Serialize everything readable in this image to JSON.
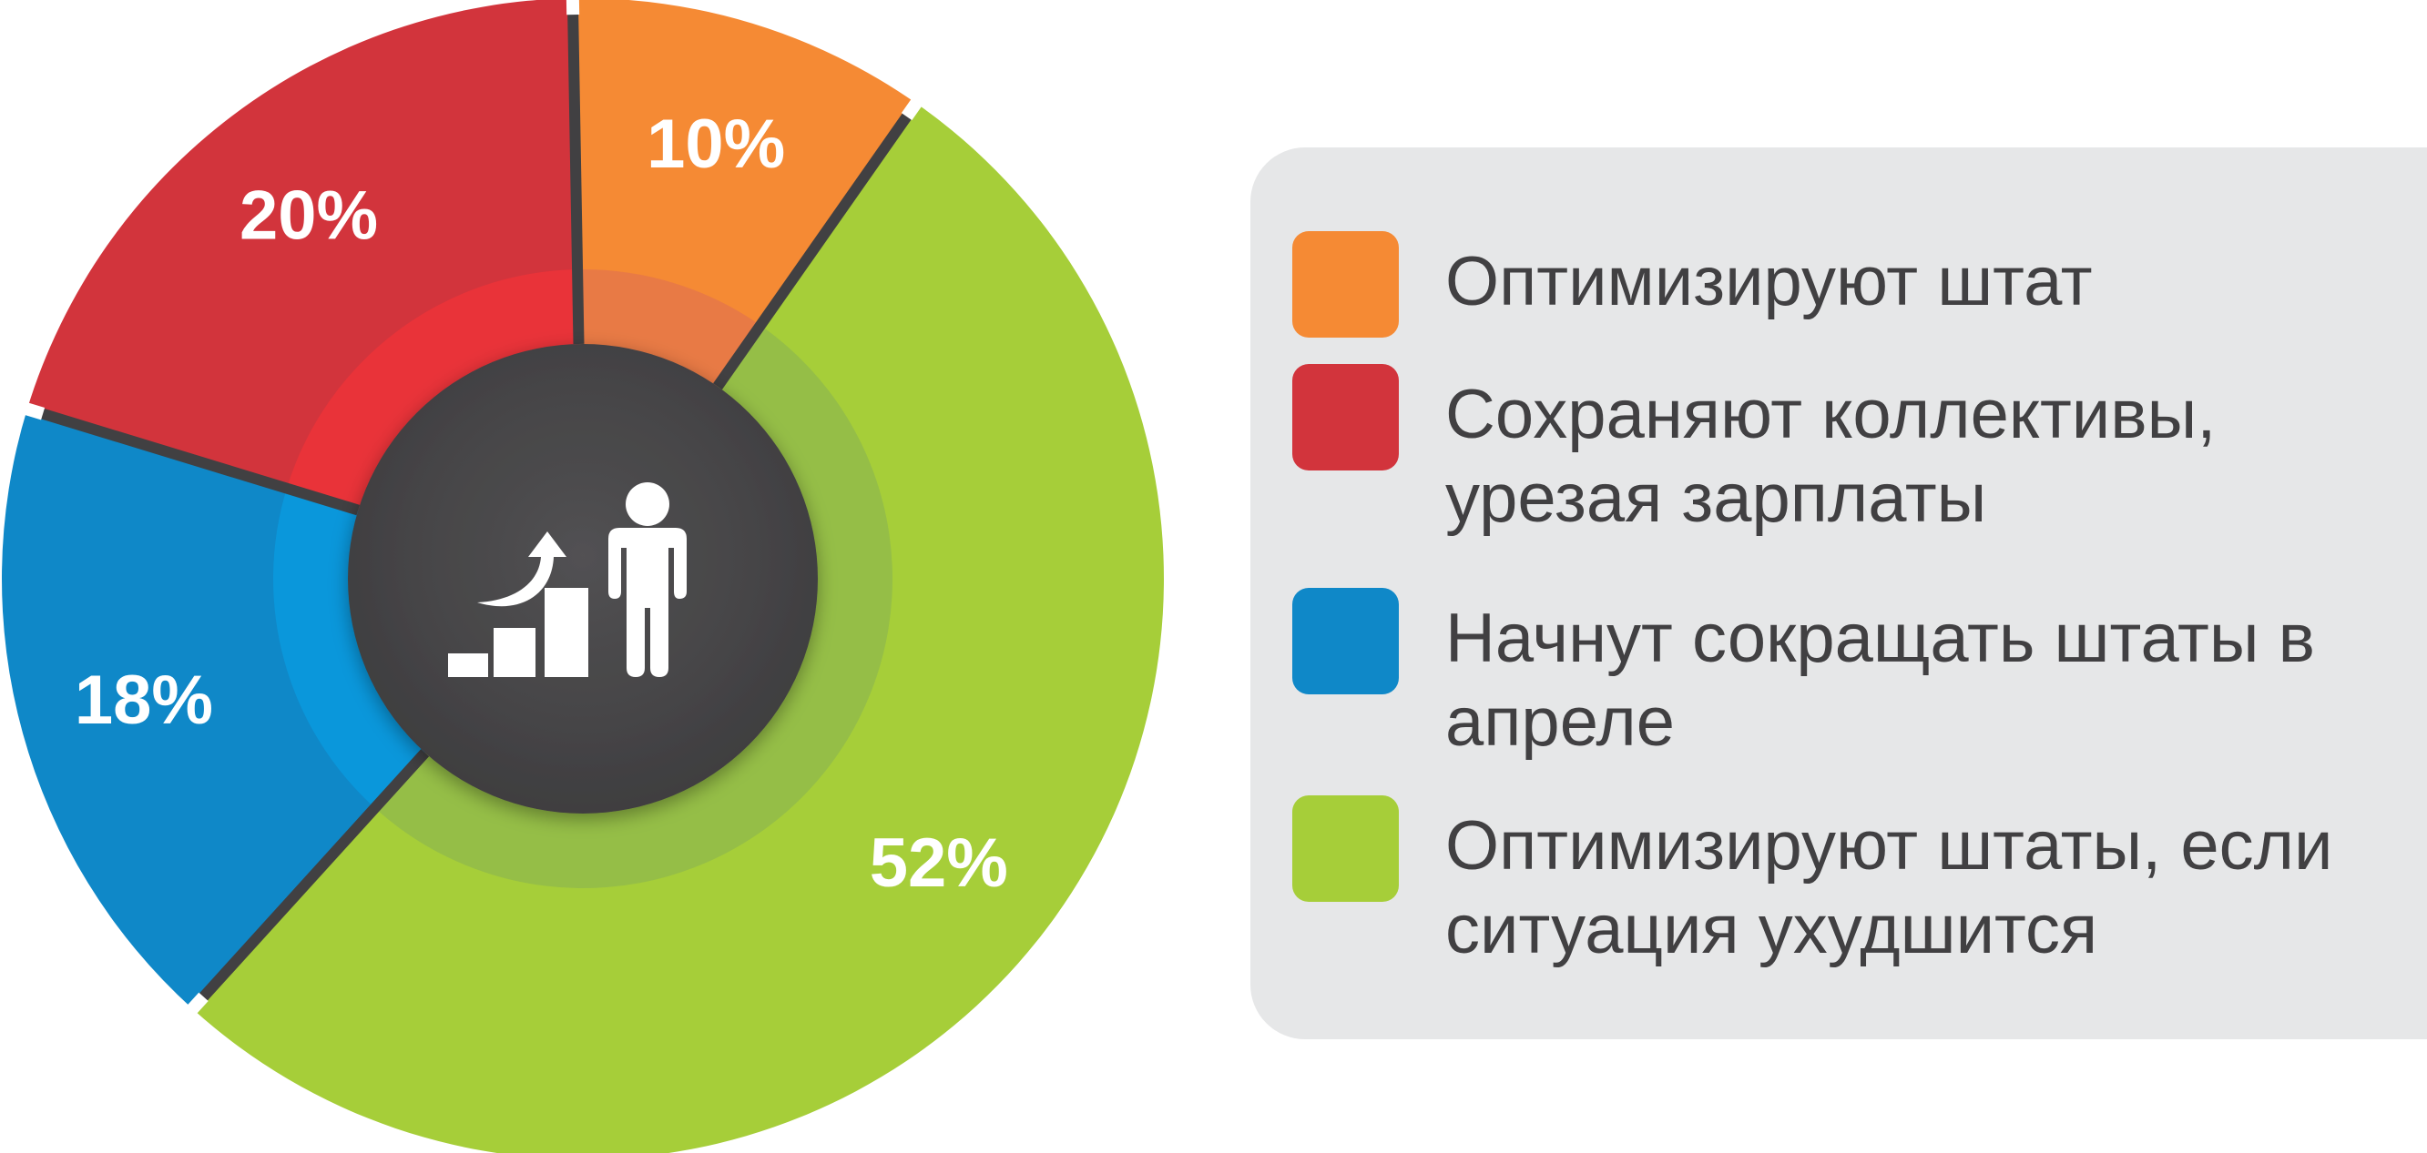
{
  "chart_data": {
    "type": "pie",
    "categories": [
      "Оптимизируют штат",
      "Сохраняют коллективы, урезая зарплаты",
      "Начнут сокращать штаты в апреле",
      "Оптимизируют штаты, если ситуация ухудшится"
    ],
    "values": [
      10,
      20,
      18,
      52
    ],
    "labels": [
      "10%",
      "20%",
      "18%",
      "52%"
    ],
    "colors": [
      "#f58a34",
      "#d2343c",
      "#0f88c8",
      "#a6ce39"
    ],
    "inner_colors": [
      "#e87a45",
      "#e93339",
      "#0a97db",
      "#95be47"
    ],
    "center_color": "#4a494b",
    "legend_position": "right",
    "center_icon": "career-growth-person-icon"
  },
  "legend": {
    "items": [
      {
        "label": "Оптимизируют штат",
        "color": "#f58a34"
      },
      {
        "label": "Сохраняют коллективы, урезая зарплаты",
        "color": "#d2343c"
      },
      {
        "label": "Начнут сокращать штаты в апреле",
        "color": "#0f88c8"
      },
      {
        "label": "Оптимизируют штаты, если ситуация ухудшится",
        "color": "#a6ce39"
      }
    ]
  }
}
